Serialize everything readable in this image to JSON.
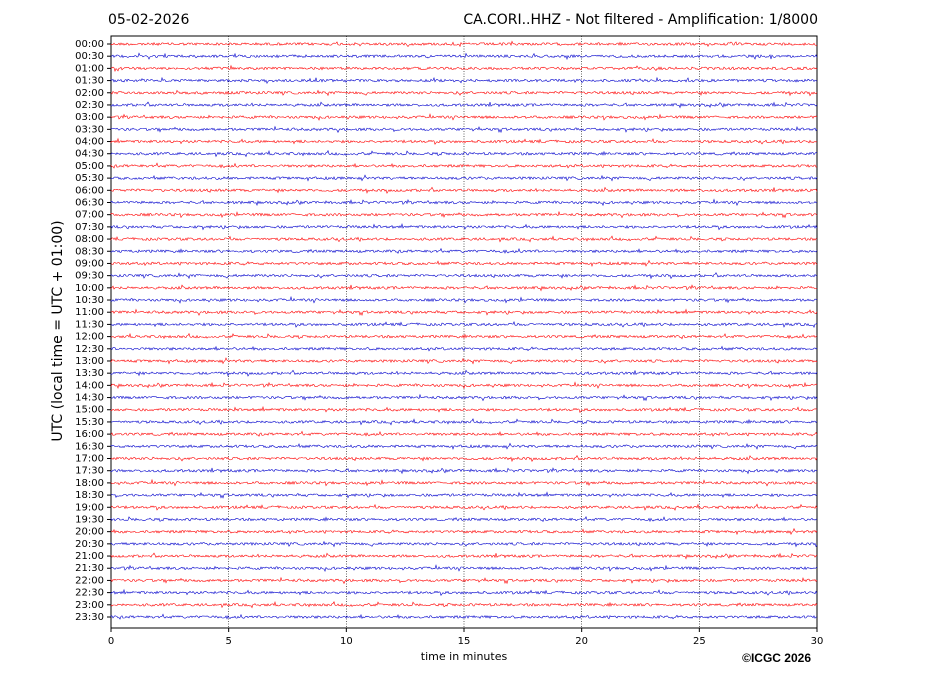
{
  "chart_data": {
    "type": "helicorder",
    "title_left": "05-02-2026",
    "title": "CA.CORI..HHZ - Not filtered - Amplification: 1/8000",
    "x_label": "time in minutes",
    "y_label": "UTC (local time = UTC + 01:00)",
    "credit": "©ICGC 2026",
    "categories": [
      "00:00",
      "00:30",
      "01:00",
      "01:30",
      "02:00",
      "02:30",
      "03:00",
      "03:30",
      "04:00",
      "04:30",
      "05:00",
      "05:30",
      "06:00",
      "06:30",
      "07:00",
      "07:30",
      "08:00",
      "08:30",
      "09:00",
      "09:30",
      "10:00",
      "10:30",
      "11:00",
      "11:30",
      "12:00",
      "12:30",
      "13:00",
      "13:30",
      "14:00",
      "14:30",
      "15:00",
      "15:30",
      "16:00",
      "16:30",
      "17:00",
      "17:30",
      "18:00",
      "18:30",
      "19:00",
      "19:30",
      "20:00",
      "20:30",
      "21:00",
      "21:30",
      "22:00",
      "22:30",
      "23:00",
      "23:30"
    ],
    "colors": [
      "#ff0000",
      "#0000cc"
    ],
    "xlim": [
      0,
      30
    ],
    "xticks": [
      0,
      5,
      10,
      15,
      20,
      25,
      30
    ],
    "grid": true
  }
}
